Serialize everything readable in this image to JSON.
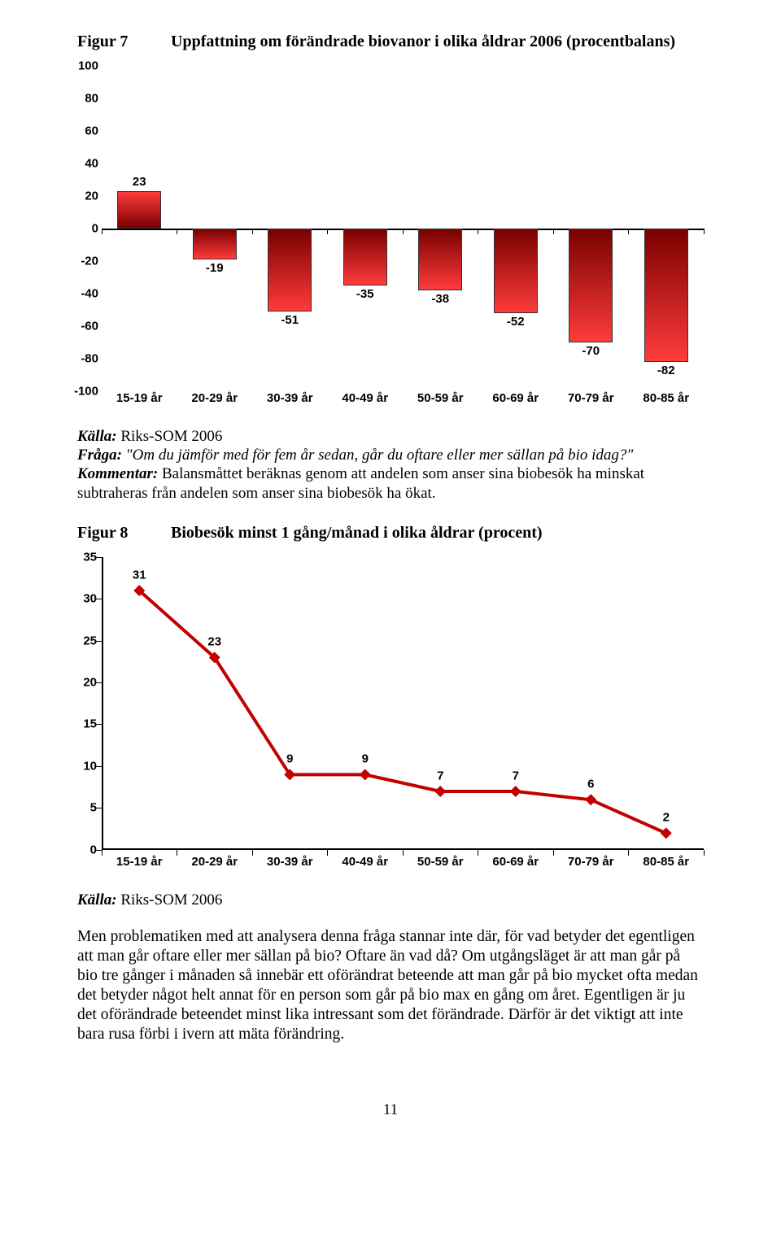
{
  "figure7": {
    "label": "Figur 7",
    "title": "Uppfattning om förändrade biovanor i olika åldrar 2006 (procentbalans)",
    "type": "bar",
    "ymin": -100,
    "ymax": 100,
    "ystep": 20,
    "categories": [
      "15-19 år",
      "20-29 år",
      "30-39 år",
      "40-49 år",
      "50-59 år",
      "60-69 år",
      "70-79 år",
      "80-85 år"
    ],
    "values": [
      23,
      -19,
      -51,
      -35,
      -38,
      -52,
      -70,
      -82
    ],
    "bar_fill_top": "#ff3b3b",
    "bar_fill_bottom": "#7a0000",
    "bar_border": "#333333",
    "axis_font": "Arial",
    "label_fontsize": 15
  },
  "notes7": {
    "source_label": "Källa:",
    "source_text": "Riks-SOM 2006",
    "question_label": "Fråga:",
    "question_text": "\"Om du jämför med för fem år sedan, går du oftare eller mer sällan på bio idag?\"",
    "comment_label": "Kommentar:",
    "comment_text": "Balansmåttet beräknas genom att andelen som anser sina biobesök ha minskat subtraheras från andelen som anser sina biobesök ha ökat."
  },
  "figure8": {
    "label": "Figur 8",
    "title": "Biobesök minst 1 gång/månad i olika åldrar (procent)",
    "type": "line",
    "ymin": 0,
    "ymax": 35,
    "ystep": 5,
    "categories": [
      "15-19 år",
      "20-29 år",
      "30-39 år",
      "40-49 år",
      "50-59 år",
      "60-69 år",
      "70-79 år",
      "80-85 år"
    ],
    "values": [
      31,
      23,
      9,
      9,
      7,
      7,
      6,
      2
    ],
    "line_color": "#c20000",
    "marker_color": "#c20000",
    "line_width": 4,
    "marker_size": 14
  },
  "notes8": {
    "source_label": "Källa:",
    "source_text": "Riks-SOM 2006"
  },
  "body": {
    "text": "Men problematiken med att analysera denna fråga stannar inte där, för vad betyder det egentligen att man går oftare eller mer sällan på bio? Oftare än vad då? Om utgångsläget är att man går på bio tre gånger i månaden så innebär ett oförändrat beteende att man går på bio mycket ofta medan det betyder något helt annat för en person som går på bio max en gång om året. Egentligen är ju det oförändrade beteendet minst lika intressant som det förändrade. Därför är det viktigt att inte bara rusa förbi i ivern att mäta förändring."
  },
  "page_number": "11"
}
